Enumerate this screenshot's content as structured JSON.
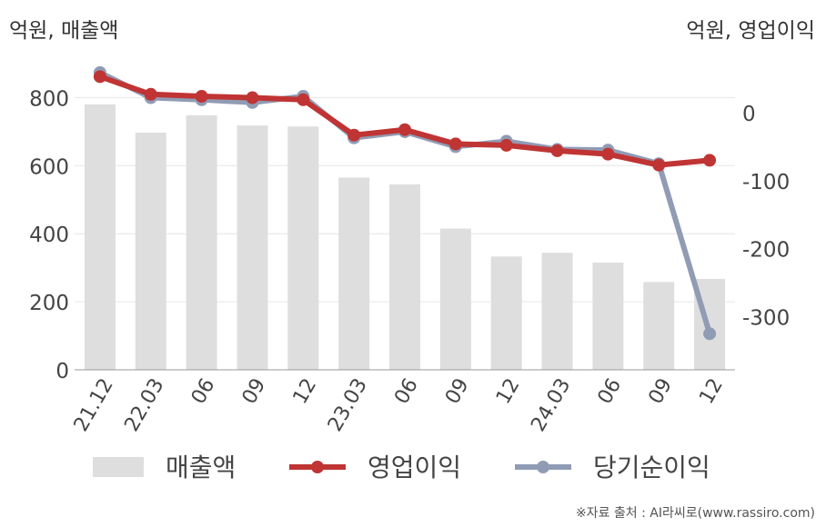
{
  "chart_data": {
    "type": "bar+line",
    "categories": [
      "21.12",
      "22.03",
      "06",
      "09",
      "12",
      "23.03",
      "06",
      "09",
      "12",
      "24.03",
      "06",
      "09",
      "12"
    ],
    "left_axis": {
      "unit_label": "억원, 매출액",
      "ylim": [
        0,
        900
      ],
      "ticks": [
        0,
        200,
        400,
        600,
        800
      ]
    },
    "right_axis": {
      "unit_label": "억원, 영업이익",
      "ylim": [
        -380,
        60
      ],
      "ticks": [
        0,
        -100,
        -200,
        -300
      ]
    },
    "series": [
      {
        "name": "매출액",
        "kind": "bar",
        "axis": "left",
        "color": "#dedede",
        "values": [
          780,
          697,
          748,
          718,
          715,
          565,
          545,
          415,
          333,
          344,
          315,
          258,
          267
        ]
      },
      {
        "name": "영업이익",
        "kind": "line",
        "axis": "right",
        "color": "#c03434",
        "values": [
          53,
          27,
          24,
          22,
          19,
          -33,
          -25,
          -46,
          -48,
          -56,
          -61,
          -77,
          -70
        ]
      },
      {
        "name": "당기순이익",
        "kind": "line",
        "axis": "right",
        "color": "#909cb4",
        "values": [
          59,
          22,
          19,
          15,
          24,
          -37,
          -28,
          -50,
          -42,
          -54,
          -55,
          -75,
          -325
        ]
      }
    ],
    "grid": true,
    "legend_position": "bottom"
  },
  "source": "※자료 출처 : AI라씨로(www.rassiro.com)"
}
